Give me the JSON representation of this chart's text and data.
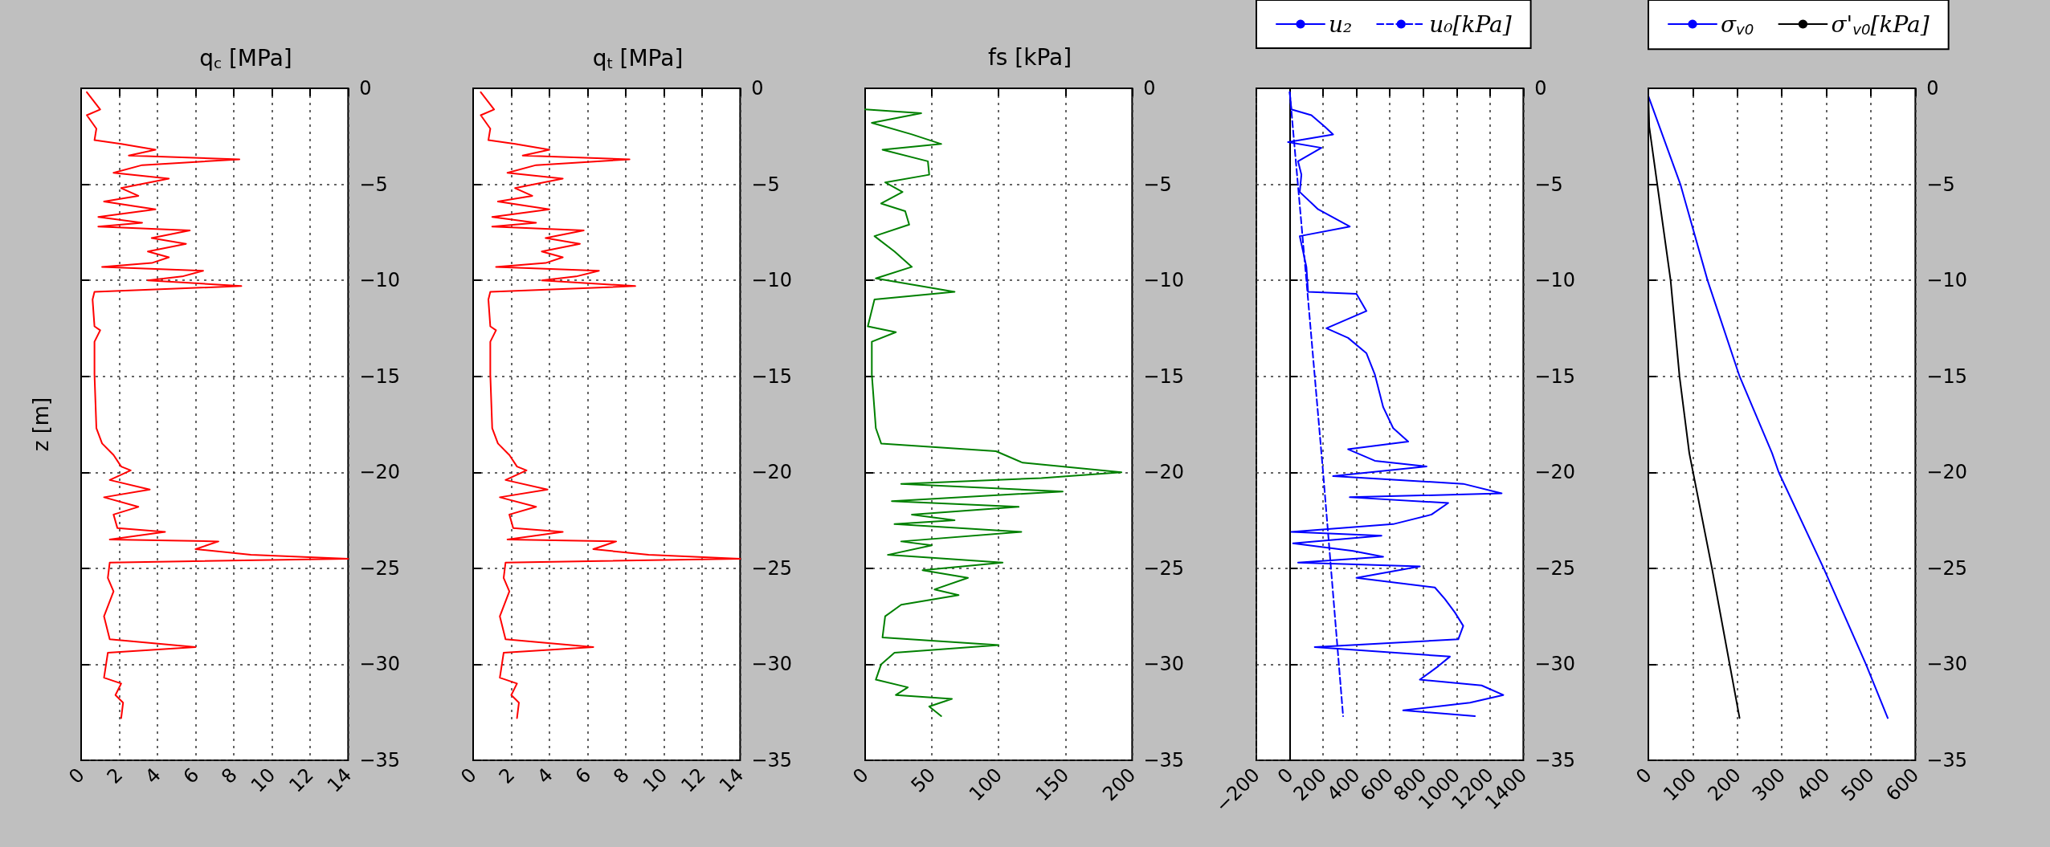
{
  "chart_data": [
    {
      "type": "line",
      "title": "q$_{c}$ [MPa]",
      "ylabel": "z [m]",
      "xlim": [
        0,
        14
      ],
      "xticks": [
        0,
        2,
        4,
        6,
        8,
        10,
        12,
        14
      ],
      "ylim": [
        -35,
        0
      ],
      "yticks": [
        0,
        -5,
        -10,
        -15,
        -20,
        -25,
        -30,
        -35
      ],
      "grid": true,
      "series": [
        {
          "color": "#ff0000",
          "x": [
            0.3,
            1.0,
            0.3,
            0.8,
            0.7,
            2.1,
            3.9,
            2.5,
            8.3,
            3.2,
            1.7,
            4.6,
            2.1,
            3.0,
            1.2,
            3.9,
            0.9,
            3.2,
            0.9,
            5.7,
            3.7,
            5.5,
            3.5,
            4.6,
            3.7,
            1.1,
            6.4,
            5.3,
            3.5,
            8.4,
            0.7,
            0.6,
            0.7,
            1.0,
            0.7,
            0.7,
            0.8,
            1.1,
            1.7,
            2.1,
            2.6,
            1.5,
            3.6,
            1.2,
            3.0,
            1.7,
            1.9,
            4.4,
            1.5,
            7.2,
            6.0,
            8.9,
            14,
            1.5,
            1.4,
            1.7,
            1.2,
            1.5,
            6.0,
            1.4,
            1.2,
            2.1,
            1.8,
            2.2,
            2.1
          ],
          "values": [
            -0.2,
            -1.1,
            -1.4,
            -2.1,
            -2.7,
            -2.9,
            -3.2,
            -3.5,
            -3.7,
            -4.0,
            -4.4,
            -4.7,
            -5.2,
            -5.6,
            -5.9,
            -6.3,
            -6.7,
            -7.0,
            -7.2,
            -7.4,
            -7.8,
            -8.1,
            -8.5,
            -8.8,
            -9.1,
            -9.3,
            -9.5,
            -9.8,
            -10.0,
            -10.3,
            -10.6,
            -11.0,
            -12.4,
            -12.6,
            -13.2,
            -14.9,
            -17.7,
            -18.5,
            -19.1,
            -19.7,
            -19.9,
            -20.4,
            -20.9,
            -21.3,
            -21.8,
            -22.2,
            -22.9,
            -23.1,
            -23.5,
            -23.6,
            -24.0,
            -24.3,
            -24.5,
            -24.7,
            -25.5,
            -26.2,
            -27.5,
            -28.7,
            -29.1,
            -29.4,
            -30.7,
            -31.0,
            -31.6,
            -32.0,
            -32.8
          ]
        }
      ]
    },
    {
      "type": "line",
      "title": "q$_{t}$ [MPa]",
      "xlim": [
        0,
        14
      ],
      "xticks": [
        0,
        2,
        4,
        6,
        8,
        10,
        12,
        14
      ],
      "ylim": [
        -35,
        0
      ],
      "yticks": [
        0,
        -5,
        -10,
        -15,
        -20,
        -25,
        -30,
        -35
      ],
      "grid": true,
      "series": [
        {
          "color": "#ff0000",
          "x": [
            0.4,
            1.1,
            0.4,
            0.9,
            0.8,
            2.2,
            4.0,
            2.6,
            8.2,
            3.3,
            1.8,
            4.7,
            2.2,
            3.1,
            1.3,
            4.0,
            1.0,
            3.3,
            1.0,
            5.8,
            3.8,
            5.6,
            3.6,
            4.7,
            3.8,
            1.2,
            6.6,
            5.4,
            3.6,
            8.5,
            0.9,
            0.8,
            0.9,
            1.2,
            0.9,
            0.9,
            1.0,
            1.3,
            1.9,
            2.3,
            2.8,
            1.7,
            3.9,
            1.4,
            3.3,
            1.9,
            2.1,
            4.7,
            1.8,
            7.5,
            6.3,
            9.2,
            14,
            1.7,
            1.6,
            1.9,
            1.4,
            1.7,
            6.3,
            1.6,
            1.4,
            2.3,
            2.0,
            2.4,
            2.3
          ],
          "values": [
            -0.2,
            -1.1,
            -1.4,
            -2.1,
            -2.7,
            -2.9,
            -3.2,
            -3.5,
            -3.7,
            -4.0,
            -4.4,
            -4.7,
            -5.2,
            -5.6,
            -5.9,
            -6.3,
            -6.7,
            -7.0,
            -7.2,
            -7.4,
            -7.8,
            -8.1,
            -8.5,
            -8.8,
            -9.1,
            -9.3,
            -9.5,
            -9.8,
            -10.0,
            -10.3,
            -10.6,
            -11.0,
            -12.4,
            -12.6,
            -13.2,
            -14.9,
            -17.7,
            -18.5,
            -19.1,
            -19.7,
            -19.9,
            -20.4,
            -20.9,
            -21.3,
            -21.8,
            -22.2,
            -22.9,
            -23.1,
            -23.5,
            -23.6,
            -24.0,
            -24.3,
            -24.5,
            -24.7,
            -25.5,
            -26.2,
            -27.5,
            -28.7,
            -29.1,
            -29.4,
            -30.7,
            -31.0,
            -31.6,
            -32.0,
            -32.8
          ]
        }
      ]
    },
    {
      "type": "line",
      "title": "fs [kPa]",
      "xlim": [
        0,
        200
      ],
      "xticks": [
        0,
        50,
        100,
        150,
        200
      ],
      "ylim": [
        -35,
        0
      ],
      "yticks": [
        0,
        -5,
        -10,
        -15,
        -20,
        -25,
        -30,
        -35
      ],
      "grid": true,
      "series": [
        {
          "color": "#008000",
          "x": [
            0,
            42,
            5,
            35,
            57,
            13,
            47,
            48,
            15,
            28,
            12,
            30,
            33,
            7,
            22,
            35,
            8,
            67,
            7,
            2,
            23,
            5,
            5,
            8,
            12,
            98,
            118,
            192,
            132,
            27,
            148,
            20,
            115,
            35,
            67,
            22,
            117,
            27,
            50,
            17,
            103,
            43,
            77,
            52,
            70,
            27,
            15,
            13,
            100,
            22,
            12,
            8,
            32,
            23,
            65,
            48,
            57
          ],
          "values": [
            -1.1,
            -1.3,
            -1.8,
            -2.4,
            -2.9,
            -3.2,
            -3.8,
            -4.5,
            -4.9,
            -5.4,
            -6.0,
            -6.4,
            -7.1,
            -7.7,
            -8.5,
            -9.3,
            -9.9,
            -10.6,
            -11.0,
            -12.4,
            -12.7,
            -13.2,
            -14.9,
            -17.7,
            -18.5,
            -18.9,
            -19.5,
            -20.0,
            -20.3,
            -20.6,
            -21.0,
            -21.5,
            -21.8,
            -22.2,
            -22.5,
            -22.7,
            -23.1,
            -23.6,
            -23.8,
            -24.3,
            -24.7,
            -25.1,
            -25.5,
            -26.1,
            -26.4,
            -26.9,
            -27.5,
            -28.6,
            -29.0,
            -29.4,
            -30.0,
            -30.8,
            -31.2,
            -31.6,
            -31.8,
            -32.2,
            -32.7
          ]
        }
      ]
    },
    {
      "type": "line",
      "xlim": [
        -200,
        1400
      ],
      "xticks": [
        -200,
        0,
        200,
        400,
        600,
        800,
        1000,
        1200,
        1400
      ],
      "ylim": [
        -35,
        0
      ],
      "yticks": [
        0,
        -5,
        -10,
        -15,
        -20,
        -25,
        -30,
        -35
      ],
      "grid": true,
      "legend": "top",
      "series": [
        {
          "name": "u₂",
          "color": "#0000ff",
          "line_style": "solid",
          "x": [
            0,
            10,
            130,
            210,
            260,
            -10,
            190,
            50,
            70,
            60,
            170,
            360,
            60,
            100,
            110,
            400,
            460,
            220,
            350,
            460,
            510,
            560,
            620,
            710,
            350,
            510,
            820,
            260,
            1040,
            1270,
            360,
            950,
            850,
            620,
            10,
            550,
            20,
            380,
            560,
            50,
            780,
            400,
            870,
            930,
            990,
            1040,
            1010,
            150,
            960,
            890,
            780,
            1150,
            1280,
            1080,
            680,
            1110
          ],
          "values": [
            -0.2,
            -1.1,
            -1.4,
            -2.0,
            -2.4,
            -2.8,
            -3.1,
            -3.8,
            -4.5,
            -5.4,
            -6.3,
            -7.2,
            -7.7,
            -9.3,
            -10.6,
            -10.7,
            -11.6,
            -12.5,
            -13.0,
            -13.8,
            -14.9,
            -16.6,
            -17.7,
            -18.4,
            -18.8,
            -19.4,
            -19.7,
            -20.2,
            -20.6,
            -21.1,
            -21.3,
            -21.6,
            -22.2,
            -22.7,
            -23.1,
            -23.3,
            -23.7,
            -24.1,
            -24.4,
            -24.7,
            -24.9,
            -25.5,
            -26.0,
            -26.6,
            -27.3,
            -28.0,
            -28.7,
            -29.1,
            -29.6,
            -30.1,
            -30.8,
            -31.1,
            -31.6,
            -32.0,
            -32.4,
            -32.7
          ]
        },
        {
          "name": "u₀[kPa]",
          "color": "#0000ff",
          "line_style": "dashed",
          "x": [
            0,
            100,
            200,
            320
          ],
          "values": [
            -0.2,
            -10,
            -20,
            -32.7
          ]
        }
      ]
    },
    {
      "type": "line",
      "xlim": [
        0,
        600
      ],
      "xticks": [
        0,
        100,
        200,
        300,
        400,
        500,
        600
      ],
      "ylim": [
        -35,
        0
      ],
      "yticks": [
        0,
        -5,
        -10,
        -15,
        -20,
        -25,
        -30,
        -35
      ],
      "grid": true,
      "legend": "top",
      "series": [
        {
          "name": "σ$_{v0}$",
          "color": "#0000ff",
          "x": [
            0,
            72,
            133,
            205,
            278,
            293,
            394,
            489,
            538
          ],
          "values": [
            -0.4,
            -5,
            -10,
            -15,
            -19,
            -20,
            -25,
            -30,
            -32.8
          ]
        },
        {
          "name": "σ'$_{v0}$[kPa]",
          "color": "#000000",
          "x": [
            0,
            2,
            50,
            70,
            92,
            143,
            205
          ],
          "values": [
            -0.4,
            -2,
            -10,
            -15,
            -19,
            -25,
            -32.8
          ]
        }
      ]
    }
  ]
}
